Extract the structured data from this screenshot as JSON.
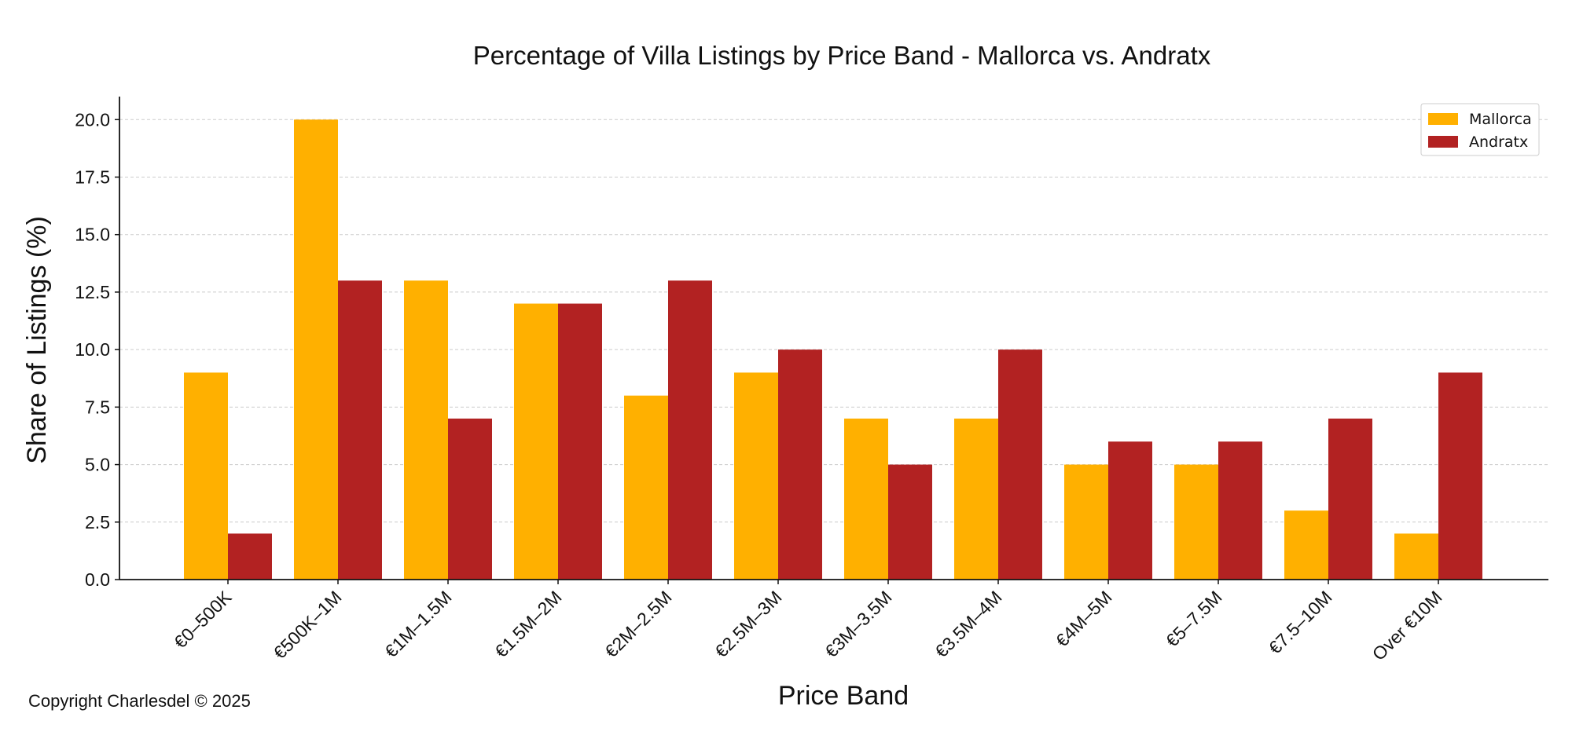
{
  "chart_data": {
    "type": "bar",
    "title": "Percentage of Villa Listings by Price Band - Mallorca vs. Andratx",
    "xlabel": "Price Band",
    "ylabel": "Share of Listings (%)",
    "categories": [
      "€0–500K",
      "€500K–1M",
      "€1M–1.5M",
      "€1.5M–2M",
      "€2M–2.5M",
      "€2.5M–3M",
      "€3M–3.5M",
      "€3.5M–4M",
      "€4M–5M",
      "€5–7.5M",
      "€7.5–10M",
      "Over €10M"
    ],
    "series": [
      {
        "name": "Mallorca",
        "color": "#FFB000",
        "values": [
          9,
          20,
          13,
          12,
          8,
          9,
          7,
          7,
          5,
          5,
          3,
          2
        ]
      },
      {
        "name": "Andratx",
        "color": "#B22222",
        "values": [
          2,
          13,
          7,
          12,
          13,
          10,
          5,
          10,
          6,
          6,
          7,
          9
        ]
      }
    ],
    "ylim": [
      0,
      21
    ],
    "yticks": [
      "0.0",
      "2.5",
      "5.0",
      "7.5",
      "10.0",
      "12.5",
      "15.0",
      "17.5",
      "20.0"
    ],
    "grid": "y-dashed",
    "legend": "top-right"
  },
  "footer": {
    "copyright": "Copyright Charlesdel © 2025"
  }
}
